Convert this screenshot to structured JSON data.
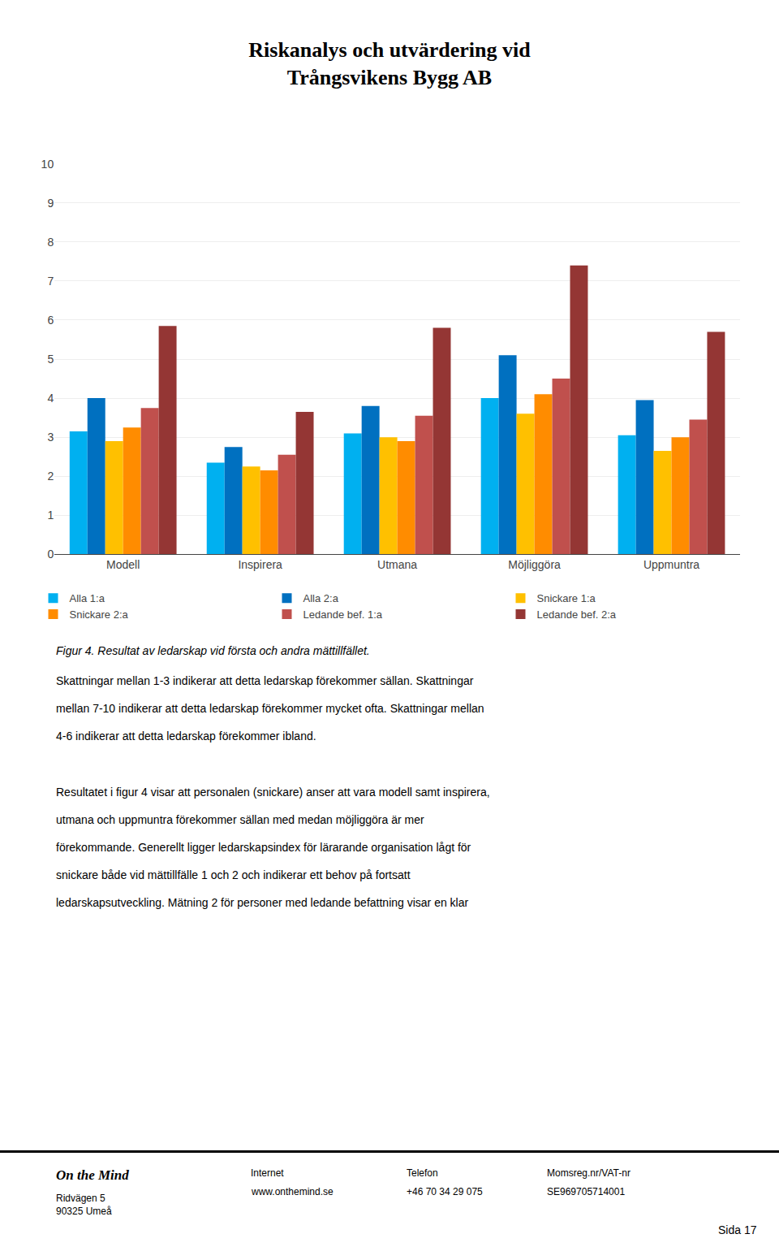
{
  "chart_data": {
    "type": "bar",
    "title": "Riskanalys och utvärdering vid\nTrångsvikens Bygg AB",
    "categories": [
      "Modell",
      "Inspirera",
      "Utmana",
      "Möjliggöra",
      "Uppmuntra"
    ],
    "series": [
      {
        "name": "Alla 1:a",
        "color": "#00B0F0",
        "values": [
          3.15,
          2.35,
          3.1,
          4.0,
          3.05
        ]
      },
      {
        "name": "Alla 2:a",
        "color": "#0070C0",
        "values": [
          4.0,
          2.75,
          3.8,
          5.1,
          3.95
        ]
      },
      {
        "name": "Snickare 1:a",
        "color": "#FFC000",
        "values": [
          2.9,
          2.25,
          3.0,
          3.6,
          2.65
        ]
      },
      {
        "name": "Snickare 2:a",
        "color": "#FF8C00",
        "values": [
          3.25,
          2.15,
          2.9,
          4.1,
          3.0
        ]
      },
      {
        "name": "Ledande bef. 1:a",
        "color": "#C0504D",
        "values": [
          3.75,
          2.55,
          3.55,
          4.5,
          3.45
        ]
      },
      {
        "name": "Ledande bef. 2:a",
        "color": "#943634",
        "values": [
          5.85,
          3.65,
          5.8,
          7.4,
          5.7
        ]
      }
    ],
    "ylim": [
      0,
      10
    ],
    "yticks": [
      0,
      1,
      2,
      3,
      4,
      5,
      6,
      7,
      8,
      9,
      10
    ],
    "grid": true,
    "legend": "bottom",
    "annotations": [
      "Figur 4. Resultat av ledarskap vid första och andra mättillfället.",
      "Skattningar mellan 1-3 indikerar att detta ledarskap förekommer sällan. Skattningar",
      "mellan 7-10 indikerar att detta ledarskap förekommer mycket ofta. Skattningar mellan",
      "4-6 indikerar att detta ledarskap förekommer ibland.",
      "Resultatet i figur 4 visar att personalen (snickare) anser att vara modell samt inspirera,",
      "utmana och uppmuntra förekommer sällan med medan möjliggöra är mer",
      "förekommande. Generellt ligger ledarskapsindex för lärarande organisation lågt för",
      "snickare både vid mättillfälle 1 och 2 och indikerar ett behov på fortsatt",
      "ledarskapsutveckling. Mätning 2 för personer med ledande befattning visar en klar",
      "On the Mind",
      "Ridvägen 5\n90325 Umeå",
      "Internet",
      "www.onthemind.se",
      "Telefon",
      "+46 70 34 29 075",
      "Momsreg.nr/VAT-nr",
      "SE969705714001",
      "Sida 17"
    ]
  }
}
